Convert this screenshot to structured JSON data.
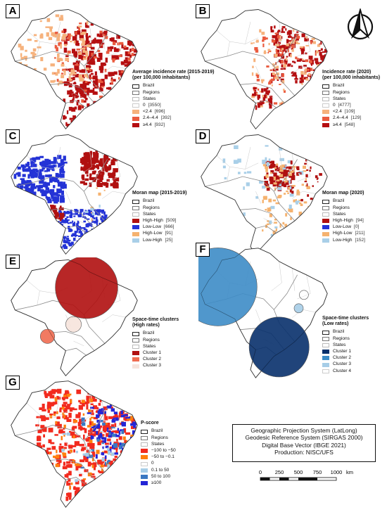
{
  "panels": [
    {
      "label": "A",
      "legend": {
        "title": "Average incidence rate (2015-2019)\n(per 100,000 inhabitants)",
        "base": [
          "Brazil",
          "Regions",
          "States"
        ],
        "classes": [
          {
            "label": "0",
            "count": "[3550]",
            "color": "#ffffff"
          },
          {
            "label": "<2.4",
            "count": "[696]",
            "color": "#f6b27d"
          },
          {
            "label": "2.4–4.4",
            "count": "[392]",
            "color": "#ea5b3f"
          },
          {
            "label": "≥4.4",
            "count": "[932]",
            "color": "#b50f11"
          }
        ]
      }
    },
    {
      "label": "B",
      "legend": {
        "title": "Incidence rate (2020)\n(per 100,000 inhabitants)",
        "base": [
          "Brazil",
          "Regions",
          "States"
        ],
        "classes": [
          {
            "label": "0",
            "count": "[4777]",
            "color": "#ffffff"
          },
          {
            "label": "<2.4",
            "count": "[109]",
            "color": "#f6b27d"
          },
          {
            "label": "2.4–4.4",
            "count": "[129]",
            "color": "#ea5b3f"
          },
          {
            "label": "≥4.4",
            "count": "[548]",
            "color": "#b50f11"
          }
        ]
      }
    },
    {
      "label": "C",
      "legend": {
        "title": "Moran map (2015-2019)",
        "base": [
          "Brazil",
          "Regions",
          "States"
        ],
        "classes": [
          {
            "label": "High-High",
            "count": "[509]",
            "color": "#b01010"
          },
          {
            "label": "Low-Low",
            "count": "[666]",
            "color": "#2433d6"
          },
          {
            "label": "High-Low",
            "count": "[91]",
            "color": "#f5b26f"
          },
          {
            "label": "Low-High",
            "count": "[25]",
            "color": "#a9cfe8"
          }
        ]
      }
    },
    {
      "label": "D",
      "legend": {
        "title": "Moran map (2020)",
        "base": [
          "Brazil",
          "Regions",
          "States"
        ],
        "classes": [
          {
            "label": "High-High",
            "count": "[94]",
            "color": "#b01010"
          },
          {
            "label": "Low-Low",
            "count": "[0]",
            "color": "#2433d6"
          },
          {
            "label": "High-Low",
            "count": "[211]",
            "color": "#f5b26f"
          },
          {
            "label": "Low-High",
            "count": "[152]",
            "color": "#a9cfe8"
          }
        ]
      }
    },
    {
      "label": "E",
      "legend": {
        "title": "Space-time clusters\n(High rates)",
        "base": [
          "Brazil",
          "Regions",
          "States"
        ],
        "classes": [
          {
            "label": "Cluster 1",
            "count": "",
            "color": "#b01010"
          },
          {
            "label": "Cluster 2",
            "count": "",
            "color": "#ef6c51"
          },
          {
            "label": "Cluster 3",
            "count": "",
            "color": "#f6e3dc"
          }
        ]
      }
    },
    {
      "label": "F",
      "legend": {
        "title": "Space-time clusters\n(Low rates)",
        "base": [
          "Brazil",
          "Regions",
          "States"
        ],
        "classes": [
          {
            "label": "Cluster 1",
            "count": "",
            "color": "#08306b"
          },
          {
            "label": "Cluster 2",
            "count": "",
            "color": "#3d8cc7"
          },
          {
            "label": "Cluster 3",
            "count": "",
            "color": "#a6cde7"
          },
          {
            "label": "Cluster 4",
            "count": "",
            "color": "#ffffff"
          }
        ]
      }
    },
    {
      "label": "G",
      "legend": {
        "title": "P-score",
        "base": [
          "Brazil",
          "Regions",
          "States"
        ],
        "classes": [
          {
            "label": "−100 to −50",
            "count": "",
            "color": "#f22a1e"
          },
          {
            "label": "−50 to −0.1",
            "count": "",
            "color": "#ff7f0e"
          },
          {
            "label": "0",
            "count": "",
            "color": "#ffffff"
          },
          {
            "label": "0.1 to 50",
            "count": "",
            "color": "#a6cde7"
          },
          {
            "label": "50 to 100",
            "count": "",
            "color": "#3a78c2"
          },
          {
            "label": "≥100",
            "count": "",
            "color": "#2426d6"
          }
        ]
      }
    }
  ],
  "info_box": {
    "lines": [
      "Geographic Projection System (LatLong)",
      "Geodesic Reference System (SIRGAS 2000)",
      "Digital Base Vector (IBGE 2021)",
      "Production: NISC/UFS"
    ]
  },
  "scale_bar": {
    "ticks": [
      "0",
      "250",
      "500",
      "750",
      "1000"
    ],
    "unit": "km"
  },
  "compass": {
    "icon": "north-arrow-icon"
  }
}
